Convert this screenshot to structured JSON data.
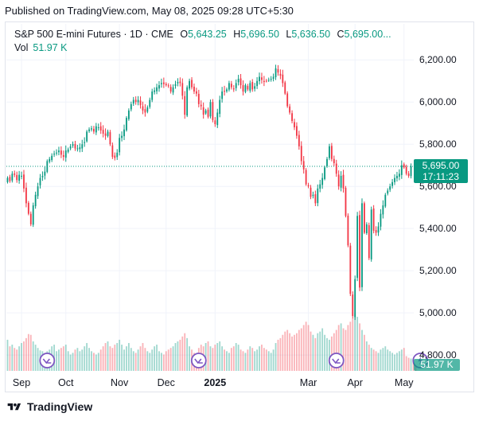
{
  "header": {
    "published": "Published on TradingView.com, May 08, 2025 09:28 UTC+5:30"
  },
  "legend": {
    "symbol": "S&P 500 E-mini Futures · 1D · CME",
    "open_label": "O",
    "open": "5,643.25",
    "high_label": "H",
    "high": "5,696.50",
    "low_label": "L",
    "low": "5,636.50",
    "close_label": "C",
    "close": "5,695.00...",
    "vol_label": "Vol",
    "vol_value": "51.97 K"
  },
  "price_badge": {
    "value": "5,695.00",
    "countdown": "17:11:23",
    "color": "#089981"
  },
  "volume_badge": {
    "value": "51.97 K"
  },
  "footer": {
    "brand": "TradingView"
  },
  "colors": {
    "up": "#089981",
    "down": "#f23645",
    "event": "#7e57c2",
    "grid": "#f0f3fa"
  },
  "chart_data": {
    "type": "candlestick",
    "y_ticks": [
      "6,200.00",
      "6,000.00",
      "5,800.00",
      "5,600.00",
      "5,400.00",
      "5,200.00",
      "5,000.00",
      "4,800.00"
    ],
    "y_tick_values": [
      6200,
      6000,
      5800,
      5600,
      5400,
      5200,
      5000,
      4800
    ],
    "ylim": [
      4725,
      6250
    ],
    "x_ticks": [
      {
        "label": "Sep",
        "index": 6,
        "bold": false
      },
      {
        "label": "Oct",
        "index": 25,
        "bold": false
      },
      {
        "label": "Nov",
        "index": 48,
        "bold": false
      },
      {
        "label": "Dec",
        "index": 68,
        "bold": false
      },
      {
        "label": "2025",
        "index": 89,
        "bold": true
      },
      {
        "label": "Mar",
        "index": 129,
        "bold": false
      },
      {
        "label": "Apr",
        "index": 149,
        "bold": false
      },
      {
        "label": "May",
        "index": 170,
        "bold": false
      }
    ],
    "current_price": 5695,
    "event_indices": [
      17,
      82,
      141,
      177
    ],
    "closes": [
      5640,
      5625,
      5660,
      5655,
      5630,
      5655,
      5650,
      5590,
      5520,
      5470,
      5420,
      5510,
      5560,
      5600,
      5640,
      5650,
      5670,
      5720,
      5730,
      5745,
      5755,
      5760,
      5770,
      5750,
      5740,
      5770,
      5775,
      5790,
      5800,
      5780,
      5780,
      5785,
      5800,
      5810,
      5860,
      5870,
      5875,
      5860,
      5885,
      5880,
      5865,
      5850,
      5840,
      5860,
      5800,
      5740,
      5735,
      5760,
      5830,
      5840,
      5870,
      5925,
      5960,
      5990,
      6010,
      6000,
      6010,
      5985,
      5960,
      5950,
      5975,
      6010,
      6050,
      6055,
      6070,
      6080,
      6090,
      6085,
      6080,
      6075,
      6050,
      6070,
      6085,
      6095,
      6090,
      6030,
      5940,
      6070,
      6100,
      6070,
      6050,
      6040,
      5990,
      5980,
      5940,
      5960,
      5930,
      6000,
      5915,
      5895,
      5950,
      6010,
      6050,
      6050,
      6060,
      6090,
      6070,
      6060,
      6090,
      6110,
      6080,
      6050,
      6080,
      6060,
      6090,
      6060,
      6075,
      6100,
      6120,
      6105,
      6095,
      6100,
      6105,
      6110,
      6120,
      6160,
      6140,
      6125,
      6090,
      6040,
      5980,
      5950,
      5910,
      5880,
      5840,
      5790,
      5720,
      5680,
      5610,
      5600,
      5550,
      5560,
      5520,
      5590,
      5610,
      5640,
      5690,
      5730,
      5790,
      5730,
      5710,
      5660,
      5600,
      5650,
      5590,
      5460,
      5320,
      5090,
      4985,
      5160,
      5460,
      5120,
      5520,
      5380,
      5420,
      5260,
      5490,
      5390,
      5380,
      5410,
      5470,
      5510,
      5560,
      5580,
      5600,
      5620,
      5640,
      5650,
      5660,
      5700,
      5690,
      5660,
      5650,
      5695
    ],
    "volumes": [
      38,
      30,
      32,
      28,
      26,
      30,
      34,
      36,
      40,
      45,
      44,
      36,
      32,
      28,
      25,
      24,
      22,
      24,
      26,
      30,
      32,
      24,
      26,
      28,
      30,
      32,
      24,
      20,
      22,
      26,
      28,
      24,
      26,
      30,
      34,
      28,
      24,
      22,
      20,
      22,
      26,
      30,
      34,
      36,
      30,
      28,
      32,
      34,
      38,
      32,
      26,
      30,
      34,
      28,
      24,
      22,
      26,
      30,
      34,
      28,
      24,
      22,
      26,
      30,
      32,
      24,
      22,
      20,
      24,
      26,
      28,
      30,
      34,
      36,
      38,
      42,
      46,
      40,
      30,
      26,
      22,
      20,
      28,
      32,
      30,
      34,
      36,
      30,
      28,
      32,
      34,
      36,
      30,
      26,
      24,
      22,
      28,
      30,
      34,
      32,
      26,
      24,
      22,
      26,
      30,
      28,
      24,
      26,
      30,
      32,
      28,
      26,
      24,
      22,
      26,
      34,
      38,
      40,
      44,
      48,
      50,
      46,
      42,
      44,
      46,
      50,
      52,
      56,
      60,
      56,
      48,
      44,
      40,
      46,
      48,
      52,
      44,
      40,
      38,
      42,
      46,
      50,
      56,
      58,
      52,
      50,
      56,
      60,
      64,
      70,
      66,
      58,
      50,
      44,
      36,
      32,
      28,
      26,
      24,
      22,
      26,
      28,
      30,
      26,
      24,
      22,
      20,
      22,
      24,
      26,
      28,
      18,
      16,
      15,
      14,
      13
    ]
  }
}
